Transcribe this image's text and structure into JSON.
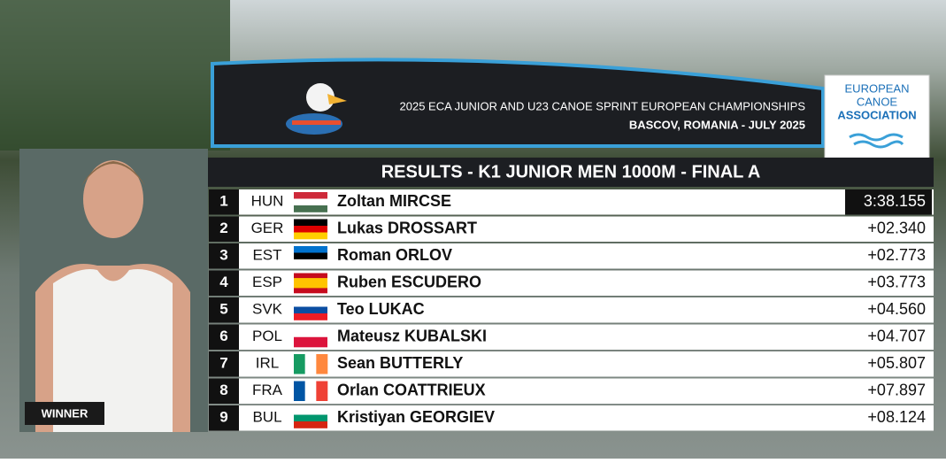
{
  "header": {
    "event": "2025 ECA JUNIOR AND U23 CANOE SPRINT EUROPEAN CHAMPIONSHIPS",
    "venue": "BASCOV, ROMANIA - JULY 2025"
  },
  "logo": {
    "lines": [
      "EUROPEAN",
      "CANOE",
      "ASSOCIATION"
    ]
  },
  "title": "RESULTS - K1 JUNIOR MEN 1000M - FINAL A",
  "winner_label": "WINNER",
  "results": [
    {
      "rank": 1,
      "country": "HUN",
      "name": "Zoltan MIRCSE",
      "time": "3:38.155"
    },
    {
      "rank": 2,
      "country": "GER",
      "name": "Lukas DROSSART",
      "time": "+02.340"
    },
    {
      "rank": 3,
      "country": "EST",
      "name": "Roman ORLOV",
      "time": "+02.773"
    },
    {
      "rank": 4,
      "country": "ESP",
      "name": "Ruben ESCUDERO",
      "time": "+03.773"
    },
    {
      "rank": 5,
      "country": "SVK",
      "name": "Teo LUKAC",
      "time": "+04.560"
    },
    {
      "rank": 6,
      "country": "POL",
      "name": "Mateusz KUBALSKI",
      "time": "+04.707"
    },
    {
      "rank": 7,
      "country": "IRL",
      "name": "Sean BUTTERLY",
      "time": "+05.807"
    },
    {
      "rank": 8,
      "country": "FRA",
      "name": "Orlan COATTRIEUX",
      "time": "+07.897"
    },
    {
      "rank": 9,
      "country": "BUL",
      "name": "Kristiyan GEORGIEV",
      "time": "+08.124"
    }
  ]
}
